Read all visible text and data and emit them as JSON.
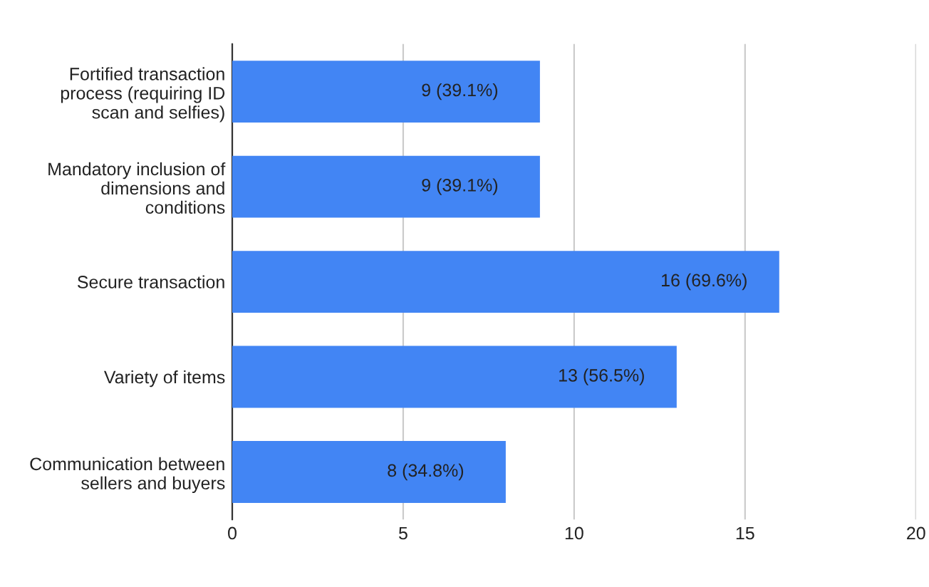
{
  "chart_data": {
    "type": "bar",
    "orientation": "horizontal",
    "categories": [
      "Fortified transaction process (requiring ID scan and selfies)",
      "Mandatory inclusion of dimensions and conditions",
      "Secure transaction",
      "Variety of items",
      "Communication between sellers and buyers"
    ],
    "values": [
      9,
      9,
      16,
      13,
      8
    ],
    "value_labels": [
      "9 (39.1%)",
      "9 (39.1%)",
      "16 (69.6%)",
      "13 (56.5%)",
      "8 (34.8%)"
    ],
    "color": "#4285f4",
    "xlim": [
      0,
      20
    ],
    "xticks": [
      0,
      5,
      10,
      15,
      20
    ],
    "grid": "x",
    "legend": false
  }
}
